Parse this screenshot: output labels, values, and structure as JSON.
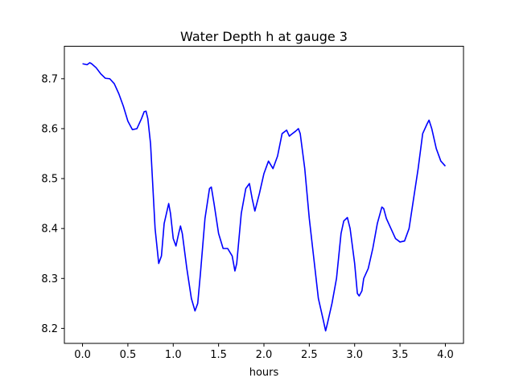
{
  "chart_data": {
    "type": "line",
    "title": "Water Depth h at gauge 3",
    "xlabel": "hours",
    "ylabel": "",
    "xlim": [
      -0.2,
      4.2
    ],
    "ylim": [
      8.17,
      8.765
    ],
    "xticks": [
      0.0,
      0.5,
      1.0,
      1.5,
      2.0,
      2.5,
      3.0,
      3.5,
      4.0
    ],
    "xtick_labels": [
      "0.0",
      "0.5",
      "1.0",
      "1.5",
      "2.0",
      "2.5",
      "3.0",
      "3.5",
      "4.0"
    ],
    "yticks": [
      8.2,
      8.3,
      8.4,
      8.5,
      8.6,
      8.7
    ],
    "ytick_labels": [
      "8.2",
      "8.3",
      "8.4",
      "8.5",
      "8.6",
      "8.7"
    ],
    "grid": false,
    "series": [
      {
        "color": "#0000ff",
        "x": [
          0.0,
          0.05,
          0.08,
          0.1,
          0.15,
          0.2,
          0.25,
          0.3,
          0.35,
          0.4,
          0.45,
          0.5,
          0.55,
          0.6,
          0.65,
          0.68,
          0.7,
          0.72,
          0.75,
          0.8,
          0.84,
          0.87,
          0.9,
          0.95,
          0.97,
          1.0,
          1.03,
          1.06,
          1.08,
          1.1,
          1.15,
          1.2,
          1.24,
          1.27,
          1.3,
          1.35,
          1.4,
          1.42,
          1.45,
          1.5,
          1.55,
          1.6,
          1.65,
          1.68,
          1.7,
          1.75,
          1.8,
          1.84,
          1.87,
          1.9,
          1.95,
          2.0,
          2.05,
          2.1,
          2.15,
          2.2,
          2.25,
          2.28,
          2.3,
          2.35,
          2.38,
          2.4,
          2.45,
          2.5,
          2.55,
          2.6,
          2.65,
          2.68,
          2.7,
          2.75,
          2.8,
          2.85,
          2.88,
          2.92,
          2.95,
          3.0,
          3.03,
          3.05,
          3.08,
          3.1,
          3.15,
          3.2,
          3.25,
          3.3,
          3.32,
          3.35,
          3.4,
          3.45,
          3.5,
          3.55,
          3.6,
          3.65,
          3.7,
          3.75,
          3.8,
          3.82,
          3.85,
          3.9,
          3.95,
          4.0
        ],
        "values": [
          8.73,
          8.728,
          8.732,
          8.73,
          8.722,
          8.71,
          8.701,
          8.7,
          8.69,
          8.67,
          8.645,
          8.615,
          8.598,
          8.6,
          8.62,
          8.634,
          8.635,
          8.62,
          8.57,
          8.4,
          8.33,
          8.345,
          8.41,
          8.45,
          8.43,
          8.38,
          8.365,
          8.39,
          8.405,
          8.39,
          8.32,
          8.26,
          8.235,
          8.25,
          8.31,
          8.42,
          8.48,
          8.483,
          8.45,
          8.39,
          8.36,
          8.36,
          8.345,
          8.315,
          8.33,
          8.43,
          8.48,
          8.49,
          8.46,
          8.435,
          8.47,
          8.51,
          8.535,
          8.52,
          8.545,
          8.59,
          8.597,
          8.585,
          8.588,
          8.595,
          8.6,
          8.59,
          8.52,
          8.42,
          8.34,
          8.26,
          8.22,
          8.195,
          8.21,
          8.25,
          8.3,
          8.39,
          8.415,
          8.422,
          8.4,
          8.33,
          8.27,
          8.265,
          8.275,
          8.3,
          8.32,
          8.36,
          8.41,
          8.443,
          8.44,
          8.42,
          8.4,
          8.38,
          8.373,
          8.375,
          8.4,
          8.46,
          8.52,
          8.59,
          8.61,
          8.617,
          8.6,
          8.56,
          8.535,
          8.525
        ]
      }
    ]
  }
}
